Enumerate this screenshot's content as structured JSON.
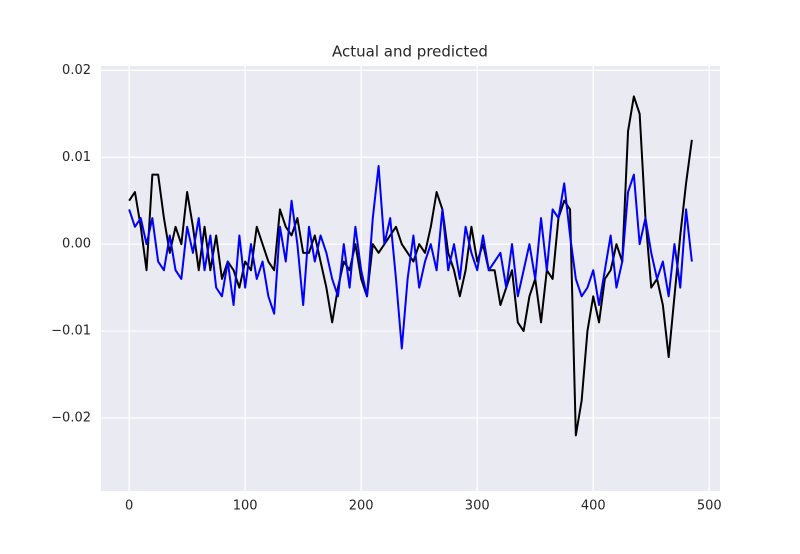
{
  "chart_data": {
    "type": "line",
    "title": "Actual and predicted",
    "x": [
      0,
      5,
      10,
      15,
      20,
      25,
      30,
      35,
      40,
      45,
      50,
      55,
      60,
      65,
      70,
      75,
      80,
      85,
      90,
      95,
      100,
      105,
      110,
      115,
      120,
      125,
      130,
      135,
      140,
      145,
      150,
      155,
      160,
      165,
      170,
      175,
      180,
      185,
      190,
      195,
      200,
      205,
      210,
      215,
      220,
      225,
      230,
      235,
      240,
      245,
      250,
      255,
      260,
      265,
      270,
      275,
      280,
      285,
      290,
      295,
      300,
      305,
      310,
      315,
      320,
      325,
      330,
      335,
      340,
      345,
      350,
      355,
      360,
      365,
      370,
      375,
      380,
      385,
      390,
      395,
      400,
      405,
      410,
      415,
      420,
      425,
      430,
      435,
      440,
      445,
      450,
      455,
      460,
      465,
      470,
      475,
      480,
      485
    ],
    "series": [
      {
        "color": "#000000",
        "values": [
          0.005,
          0.006,
          0.002,
          -0.003,
          0.008,
          0.008,
          0.003,
          -0.001,
          0.002,
          0.0,
          0.006,
          0.002,
          -0.003,
          0.002,
          -0.003,
          0.001,
          -0.004,
          -0.002,
          -0.003,
          -0.005,
          -0.002,
          -0.003,
          0.002,
          0.0,
          -0.002,
          -0.003,
          0.004,
          0.002,
          0.001,
          0.003,
          -0.001,
          -0.001,
          0.001,
          -0.002,
          -0.005,
          -0.009,
          -0.005,
          -0.002,
          -0.003,
          0.0,
          -0.004,
          -0.006,
          0.0,
          -0.001,
          0.0,
          0.001,
          0.002,
          0.0,
          -0.001,
          -0.002,
          0.0,
          -0.001,
          0.002,
          0.006,
          0.004,
          -0.001,
          -0.003,
          -0.006,
          -0.003,
          0.002,
          -0.002,
          0.0,
          -0.003,
          -0.003,
          -0.007,
          -0.005,
          -0.003,
          -0.009,
          -0.01,
          -0.006,
          -0.004,
          -0.009,
          -0.003,
          -0.004,
          0.003,
          0.005,
          0.004,
          -0.022,
          -0.018,
          -0.01,
          -0.006,
          -0.009,
          -0.004,
          -0.003,
          0.0,
          -0.002,
          0.013,
          0.017,
          0.015,
          0.003,
          -0.005,
          -0.004,
          -0.007,
          -0.013,
          -0.006,
          0.001,
          0.007,
          0.012
        ]
      },
      {
        "color": "#0000ff",
        "values": [
          0.004,
          0.002,
          0.003,
          0.0,
          0.003,
          -0.002,
          -0.003,
          0.001,
          -0.003,
          -0.004,
          0.002,
          -0.001,
          0.003,
          -0.003,
          0.001,
          -0.005,
          -0.006,
          -0.002,
          -0.007,
          0.001,
          -0.005,
          0.0,
          -0.004,
          -0.002,
          -0.006,
          -0.008,
          0.002,
          -0.002,
          0.005,
          0.0,
          -0.007,
          0.002,
          -0.002,
          0.001,
          -0.001,
          -0.004,
          -0.006,
          0.0,
          -0.005,
          0.002,
          -0.003,
          -0.006,
          0.003,
          0.009,
          0.0,
          0.003,
          -0.004,
          -0.012,
          -0.004,
          0.001,
          -0.005,
          -0.002,
          0.0,
          -0.003,
          0.004,
          -0.003,
          0.0,
          -0.004,
          0.002,
          -0.001,
          -0.003,
          0.001,
          -0.003,
          -0.002,
          -0.001,
          -0.005,
          0.0,
          -0.006,
          -0.003,
          0.0,
          -0.004,
          0.003,
          -0.003,
          0.004,
          0.003,
          0.007,
          0.001,
          -0.004,
          -0.006,
          -0.005,
          -0.003,
          -0.007,
          -0.003,
          0.001,
          -0.005,
          -0.002,
          0.006,
          0.008,
          0.0,
          0.003,
          -0.001,
          -0.004,
          -0.002,
          -0.006,
          0.0,
          -0.005,
          0.004,
          -0.002
        ]
      }
    ],
    "xlim": [
      -24.25,
      509.25
    ],
    "xticks": [
      0,
      100,
      200,
      300,
      400,
      500
    ],
    "ylim": [
      -0.0284,
      0.0205
    ],
    "yticks": [
      {
        "value": -0.02,
        "label": "−0.02"
      },
      {
        "value": -0.01,
        "label": "−0.01"
      },
      {
        "value": 0,
        "label": "0.00"
      },
      0.01,
      0.02
    ],
    "grid": true
  }
}
